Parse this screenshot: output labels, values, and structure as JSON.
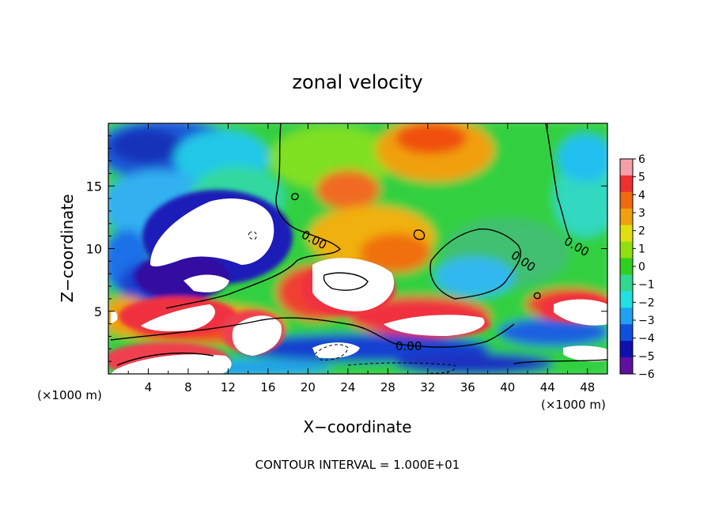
{
  "chart_data": {
    "type": "heatmap",
    "title": "zonal velocity",
    "xlabel": "X−coordinate",
    "ylabel": "Z−coordinate",
    "x_unit_left": "(×1000 m)",
    "x_unit_right": "(×1000 m)",
    "xlim": [
      0,
      50
    ],
    "ylim": [
      0,
      20
    ],
    "x_ticks": [
      "4",
      "8",
      "12",
      "16",
      "20",
      "24",
      "28",
      "32",
      "36",
      "40",
      "44",
      "48"
    ],
    "y_ticks": [
      "5",
      "10",
      "15"
    ],
    "colorbar": {
      "labels": [
        "6",
        "5",
        "4",
        "3",
        "2",
        "1",
        "0",
        "−1",
        "−2",
        "−3",
        "−4",
        "−5",
        "−6"
      ],
      "colors": [
        "#f4a0a8",
        "#f03030",
        "#f06a10",
        "#f0a010",
        "#e0e010",
        "#90e010",
        "#30d020",
        "#30d890",
        "#20e0e0",
        "#20a0f0",
        "#1050e0",
        "#1010b0",
        "#6010a0"
      ],
      "saturated_high_color": "#ffffff",
      "saturated_low_color": "#ffffff"
    },
    "contour_label": "0.00",
    "footer": "CONTOUR INTERVAL = 1.000E+01"
  }
}
